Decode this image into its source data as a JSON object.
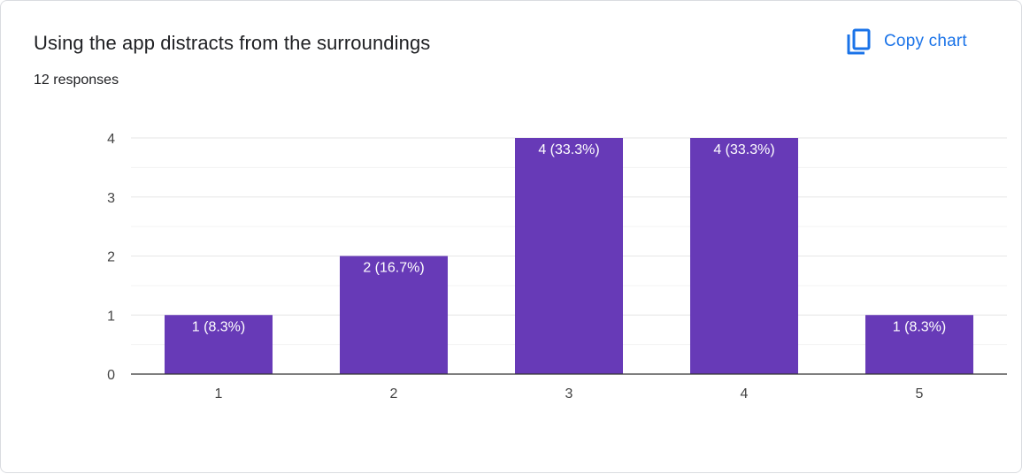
{
  "header": {
    "title": "Using the app distracts from the surroundings",
    "responses": "12 responses",
    "copy_label": "Copy chart",
    "copy_icon": "copy-icon"
  },
  "colors": {
    "bar": "#673ab7",
    "bar_label": "#ffffff",
    "grid_major": "#e6e6e6",
    "grid_minor": "#f3f3f3",
    "axis": "#333333",
    "tick_text": "#444444",
    "accent": "#1a73e8"
  },
  "chart_data": {
    "type": "bar",
    "categories": [
      "1",
      "2",
      "3",
      "4",
      "5"
    ],
    "values": [
      1,
      2,
      4,
      4,
      1
    ],
    "data_labels": [
      "1 (8.3%)",
      "2 (16.7%)",
      "4 (33.3%)",
      "4 (33.3%)",
      "1 (8.3%)"
    ],
    "y_ticks": [
      "0",
      "1",
      "2",
      "3",
      "4"
    ],
    "ylim": [
      0,
      4
    ],
    "grid": true,
    "title": "Using the app distracts from the surroundings",
    "xlabel": "",
    "ylabel": ""
  }
}
